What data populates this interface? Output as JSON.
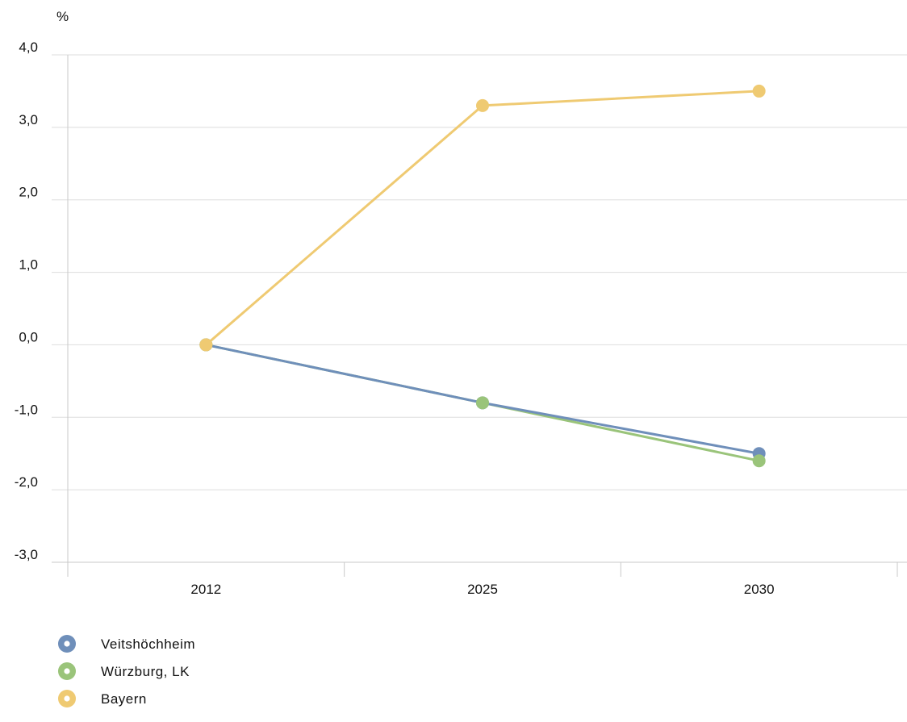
{
  "chart_data": {
    "type": "line",
    "unit_label": "%",
    "categories": [
      "2012",
      "2025",
      "2030"
    ],
    "ylim": [
      -3.0,
      4.0
    ],
    "y_ticks": [
      {
        "value": 4.0,
        "label": "4,0"
      },
      {
        "value": 3.0,
        "label": "3,0"
      },
      {
        "value": 2.0,
        "label": "2,0"
      },
      {
        "value": 1.0,
        "label": "1,0"
      },
      {
        "value": 0.0,
        "label": "0,0"
      },
      {
        "value": -1.0,
        "label": "-1,0"
      },
      {
        "value": -2.0,
        "label": "-2,0"
      },
      {
        "value": -3.0,
        "label": "-3,0"
      }
    ],
    "grid": true,
    "legend_position": "bottom-left",
    "series": [
      {
        "name": "Veitshöchheim",
        "color": "#6f8fba",
        "values": [
          0.0,
          -0.8,
          -1.5
        ]
      },
      {
        "name": "Würzburg, LK",
        "color": "#9ac47a",
        "values": [
          0.0,
          -0.8,
          -1.6
        ]
      },
      {
        "name": "Bayern",
        "color": "#efca72",
        "values": [
          0.0,
          3.3,
          3.5
        ]
      }
    ]
  }
}
